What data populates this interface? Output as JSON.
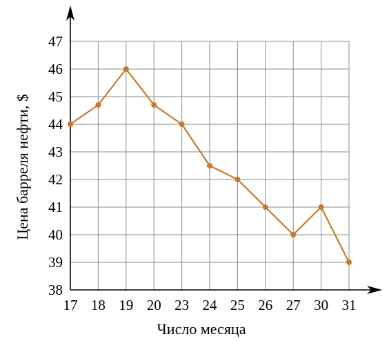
{
  "chart_data": {
    "type": "line",
    "xlabel": "Число месяца",
    "ylabel": "Цена барреля нефти, $",
    "categories": [
      "17",
      "18",
      "19",
      "20",
      "23",
      "24",
      "25",
      "26",
      "27",
      "30",
      "31"
    ],
    "series": [
      {
        "values": [
          44,
          44.7,
          46,
          44.7,
          44,
          42.5,
          42,
          41,
          40,
          41,
          39
        ]
      }
    ],
    "y_ticks": [
      "38",
      "39",
      "40",
      "41",
      "42",
      "43",
      "44",
      "45",
      "46",
      "47"
    ],
    "ylim": [
      38,
      47
    ],
    "grid": true,
    "line_color": "#c87a2a",
    "marker_color": "#c87a2a",
    "axis_color": "#000000",
    "grid_color": "#8a8a8a"
  }
}
